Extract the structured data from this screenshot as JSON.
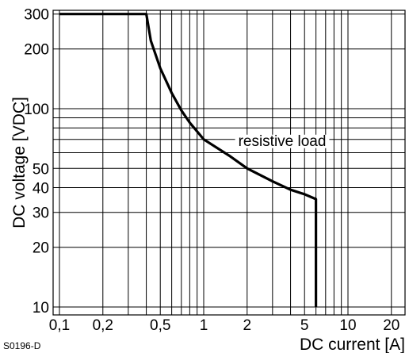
{
  "chart_data": {
    "type": "line",
    "title": "",
    "xlabel": "DC current [A]",
    "ylabel": "DC voltage [VDC]",
    "x_scale": "log",
    "y_scale": "log",
    "xlim": [
      0.1,
      30
    ],
    "ylim": [
      10,
      300
    ],
    "grid": true,
    "x_gridlines": [
      0.1,
      0.2,
      0.3,
      0.4,
      0.5,
      0.6,
      0.7,
      0.8,
      0.9,
      1,
      2,
      3,
      4,
      5,
      6,
      7,
      8,
      9,
      10,
      20
    ],
    "y_gridlines": [
      10,
      20,
      30,
      40,
      50,
      60,
      70,
      80,
      90,
      100,
      200,
      300
    ],
    "x_ticks": [
      {
        "value": 0.1,
        "label": "0,1"
      },
      {
        "value": 0.2,
        "label": "0,2"
      },
      {
        "value": 0.5,
        "label": "0,5"
      },
      {
        "value": 1,
        "label": "1"
      },
      {
        "value": 2,
        "label": "2"
      },
      {
        "value": 5,
        "label": "5"
      },
      {
        "value": 10,
        "label": "10"
      },
      {
        "value": 20,
        "label": "20"
      }
    ],
    "y_ticks": [
      {
        "value": 10,
        "label": "10"
      },
      {
        "value": 20,
        "label": "20"
      },
      {
        "value": 30,
        "label": "30"
      },
      {
        "value": 40,
        "label": "40"
      },
      {
        "value": 50,
        "label": "50"
      },
      {
        "value": 100,
        "label": "100"
      },
      {
        "value": 200,
        "label": "200"
      },
      {
        "value": 300,
        "label": "300"
      }
    ],
    "series": [
      {
        "name": "resistive load",
        "points": [
          [
            0.1,
            300
          ],
          [
            0.4,
            300
          ],
          [
            0.43,
            220
          ],
          [
            0.5,
            160
          ],
          [
            0.6,
            120
          ],
          [
            0.7,
            98
          ],
          [
            0.8,
            85
          ],
          [
            1.0,
            70
          ],
          [
            1.5,
            58
          ],
          [
            2.0,
            50
          ],
          [
            3.0,
            43
          ],
          [
            4.0,
            39
          ],
          [
            5.0,
            37
          ],
          [
            6.0,
            35
          ],
          [
            6.0,
            10
          ]
        ]
      }
    ],
    "annotations": [
      {
        "text": "resistive load",
        "x": 3.5,
        "y": 65
      }
    ],
    "figure_code": "S0196-D"
  }
}
